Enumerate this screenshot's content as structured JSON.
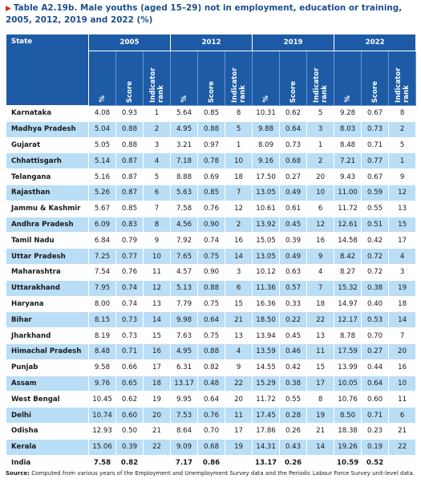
{
  "title": "Table A2.19b. Male youths (aged 15–29) not in employment, education or training, 2005, 2012, 2019 and 2022 (%)",
  "table": {
    "state_header": "State",
    "years": [
      "2005",
      "2012",
      "2019",
      "2022"
    ],
    "subheaders": [
      "%",
      "Score",
      "Indicator rank"
    ],
    "rows": [
      [
        "Karnataka",
        "4.08",
        "0.93",
        "1",
        "5.64",
        "0.85",
        "8",
        "10.31",
        "0.62",
        "5",
        "9.28",
        "0.67",
        "8"
      ],
      [
        "Madhya Pradesh",
        "5.04",
        "0.88",
        "2",
        "4.95",
        "0.88",
        "5",
        "9.88",
        "0.64",
        "3",
        "8.03",
        "0.73",
        "2"
      ],
      [
        "Gujarat",
        "5.05",
        "0.88",
        "3",
        "3.21",
        "0.97",
        "1",
        "8.09",
        "0.73",
        "1",
        "8.48",
        "0.71",
        "5"
      ],
      [
        "Chhattisgarh",
        "5.14",
        "0.87",
        "4",
        "7.18",
        "0.78",
        "10",
        "9.16",
        "0.68",
        "2",
        "7.21",
        "0.77",
        "1"
      ],
      [
        "Telangana",
        "5.16",
        "0.87",
        "5",
        "8.88",
        "0.69",
        "18",
        "17.50",
        "0.27",
        "20",
        "9.43",
        "0.67",
        "9"
      ],
      [
        "Rajasthan",
        "5.26",
        "0.87",
        "6",
        "5.63",
        "0.85",
        "7",
        "13.05",
        "0.49",
        "10",
        "11.00",
        "0.59",
        "12"
      ],
      [
        "Jammu & Kashmir",
        "5.67",
        "0.85",
        "7",
        "7.58",
        "0.76",
        "12",
        "10.61",
        "0.61",
        "6",
        "11.72",
        "0.55",
        "13"
      ],
      [
        "Andhra Pradesh",
        "6.09",
        "0.83",
        "8",
        "4.56",
        "0.90",
        "2",
        "13.92",
        "0.45",
        "12",
        "12.61",
        "0.51",
        "15"
      ],
      [
        "Tamil Nadu",
        "6.84",
        "0.79",
        "9",
        "7.92",
        "0.74",
        "16",
        "15.05",
        "0.39",
        "16",
        "14.58",
        "0.42",
        "17"
      ],
      [
        "Uttar Pradesh",
        "7.25",
        "0.77",
        "10",
        "7.65",
        "0.75",
        "14",
        "13.05",
        "0.49",
        "9",
        "8.42",
        "0.72",
        "4"
      ],
      [
        "Maharashtra",
        "7.54",
        "0.76",
        "11",
        "4.57",
        "0.90",
        "3",
        "10.12",
        "0.63",
        "4",
        "8.27",
        "0.72",
        "3"
      ],
      [
        "Uttarakhand",
        "7.95",
        "0.74",
        "12",
        "5.13",
        "0.88",
        "6",
        "11.36",
        "0.57",
        "7",
        "15.32",
        "0.38",
        "19"
      ],
      [
        "Haryana",
        "8.00",
        "0.74",
        "13",
        "7.79",
        "0.75",
        "15",
        "16.36",
        "0.33",
        "18",
        "14.97",
        "0.40",
        "18"
      ],
      [
        "Bihar",
        "8.15",
        "0.73",
        "14",
        "9.98",
        "0.64",
        "21",
        "18.50",
        "0.22",
        "22",
        "12.17",
        "0.53",
        "14"
      ],
      [
        "Jharkhand",
        "8.19",
        "0.73",
        "15",
        "7.63",
        "0.75",
        "13",
        "13.94",
        "0.45",
        "13",
        "8.78",
        "0.70",
        "7"
      ],
      [
        "Himachal Pradesh",
        "8.48",
        "0.71",
        "16",
        "4.95",
        "0.88",
        "4",
        "13.59",
        "0.46",
        "11",
        "17.59",
        "0.27",
        "20"
      ],
      [
        "Punjab",
        "9.58",
        "0.66",
        "17",
        "6.31",
        "0.82",
        "9",
        "14.55",
        "0.42",
        "15",
        "13.99",
        "0.44",
        "16"
      ],
      [
        "Assam",
        "9.76",
        "0.65",
        "18",
        "13.17",
        "0.48",
        "22",
        "15.29",
        "0.38",
        "17",
        "10.05",
        "0.64",
        "10"
      ],
      [
        "West Bengal",
        "10.45",
        "0.62",
        "19",
        "9.95",
        "0.64",
        "20",
        "11.72",
        "0.55",
        "8",
        "10.76",
        "0.60",
        "11"
      ],
      [
        "Delhi",
        "10.74",
        "0.60",
        "20",
        "7.53",
        "0.76",
        "11",
        "17.45",
        "0.28",
        "19",
        "8.50",
        "0.71",
        "6"
      ],
      [
        "Odisha",
        "12.93",
        "0.50",
        "21",
        "8.64",
        "0.70",
        "17",
        "17.86",
        "0.26",
        "21",
        "18.38",
        "0.23",
        "21"
      ],
      [
        "Kerala",
        "15.06",
        "0.39",
        "22",
        "9.09",
        "0.68",
        "19",
        "14.31",
        "0.43",
        "14",
        "19.26",
        "0.19",
        "22"
      ]
    ],
    "total": {
      "name": "India",
      "values": [
        [
          "7.58",
          "0.82"
        ],
        [
          "7.17",
          "0.86"
        ],
        [
          "13.17",
          "0.26"
        ],
        [
          "10.59",
          "0.52"
        ]
      ]
    }
  },
  "source_label": "Source:",
  "source_text": "Computed from various years of the Employment and Unemployment Survey data and the Periodic Labour Force Survey unit-level data."
}
